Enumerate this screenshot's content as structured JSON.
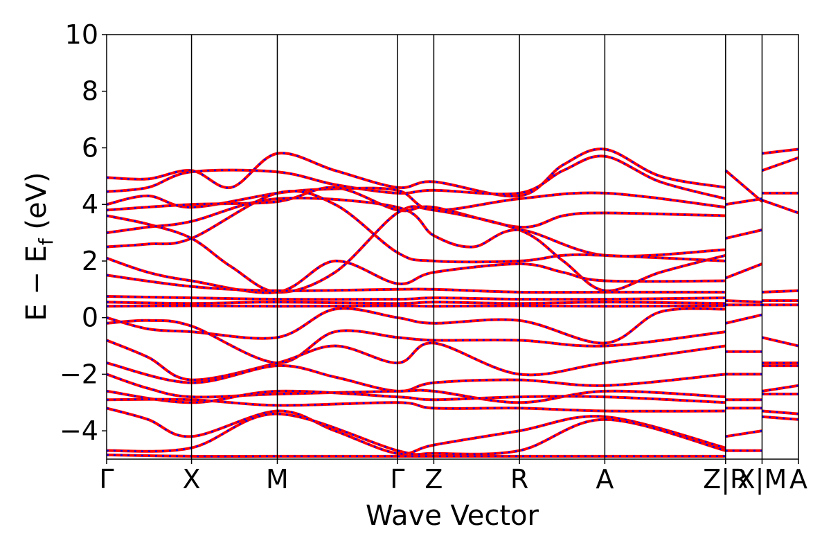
{
  "chart_data": {
    "type": "line",
    "xlabel": "Wave Vector",
    "ylabel_parts": {
      "main": "E − E",
      "sub": "f",
      "unit": " (eV)"
    },
    "ylim": [
      -5,
      10
    ],
    "yticks": [
      10,
      8,
      6,
      4,
      2,
      0,
      -2,
      -4
    ],
    "ytick_labels": [
      "10",
      "8",
      "6",
      "4",
      "2",
      "0",
      "−2",
      "−4"
    ],
    "kpath_segments": [
      "Γ–X",
      "X–M",
      "M–Γ",
      "Γ–Z",
      "Z–R",
      "R–A",
      "A–Z",
      "R–X",
      "M–A"
    ],
    "kpoints": [
      {
        "label": "Γ",
        "x": 0.0
      },
      {
        "label": "X",
        "x": 0.1227
      },
      {
        "label": "M",
        "x": 0.2467
      },
      {
        "label": "Γ",
        "x": 0.4203
      },
      {
        "label": "Z",
        "x": 0.4729
      },
      {
        "label": "R",
        "x": 0.5967
      },
      {
        "label": "A",
        "x": 0.7201
      },
      {
        "label": "Z|R",
        "x": 0.8947
      },
      {
        "label": "X|M",
        "x": 0.9474
      },
      {
        "label": "A",
        "x": 1.0
      }
    ],
    "xlim": [
      0,
      1
    ],
    "series": [
      {
        "color": "#ff0000",
        "style": "solid"
      },
      {
        "color": "#0000ff",
        "style": "dashed"
      }
    ],
    "bands": [
      [
        [
          0,
          4.95
        ],
        [
          0.06,
          4.9
        ],
        [
          0.1227,
          5.2
        ],
        [
          0.18,
          4.6
        ],
        [
          0.2467,
          5.8
        ],
        [
          0.33,
          5.2
        ],
        [
          0.4203,
          4.6
        ],
        [
          0.4729,
          4.8
        ],
        [
          0.5967,
          4.3
        ],
        [
          0.66,
          5.4
        ],
        [
          0.7201,
          5.95
        ],
        [
          0.8,
          5.0
        ],
        [
          0.8947,
          4.6
        ]
      ],
      [
        [
          0,
          4.45
        ],
        [
          0.06,
          4.6
        ],
        [
          0.1227,
          5.15
        ],
        [
          0.2467,
          5.15
        ],
        [
          0.33,
          4.7
        ],
        [
          0.4203,
          4.4
        ],
        [
          0.4729,
          4.5
        ],
        [
          0.5967,
          4.4
        ],
        [
          0.66,
          5.2
        ],
        [
          0.7201,
          5.7
        ],
        [
          0.8,
          4.8
        ],
        [
          0.8947,
          4.2
        ]
      ],
      [
        [
          0,
          4.0
        ],
        [
          0.06,
          4.3
        ],
        [
          0.1227,
          3.9
        ],
        [
          0.2467,
          4.4
        ],
        [
          0.33,
          4.55
        ],
        [
          0.4203,
          4.5
        ],
        [
          0.4729,
          3.8
        ],
        [
          0.5967,
          4.2
        ],
        [
          0.7201,
          4.4
        ],
        [
          0.8947,
          3.9
        ]
      ],
      [
        [
          0,
          3.8
        ],
        [
          0.1227,
          4.0
        ],
        [
          0.2467,
          4.1
        ],
        [
          0.33,
          4.6
        ],
        [
          0.4203,
          3.8
        ],
        [
          0.4729,
          3.9
        ],
        [
          0.5967,
          3.2
        ],
        [
          0.66,
          3.6
        ],
        [
          0.7201,
          3.7
        ],
        [
          0.8947,
          3.6
        ]
      ],
      [
        [
          0,
          3.6
        ],
        [
          0.06,
          3.3
        ],
        [
          0.1227,
          2.8
        ],
        [
          0.18,
          1.8
        ],
        [
          0.2467,
          0.9
        ],
        [
          0.33,
          1.6
        ],
        [
          0.4203,
          3.7
        ],
        [
          0.4729,
          3.8
        ],
        [
          0.5967,
          3.1
        ],
        [
          0.66,
          2.0
        ],
        [
          0.7201,
          0.95
        ],
        [
          0.8,
          1.6
        ],
        [
          0.8947,
          2.2
        ]
      ],
      [
        [
          0,
          3.0
        ],
        [
          0.06,
          3.2
        ],
        [
          0.1227,
          3.4
        ],
        [
          0.2467,
          4.2
        ],
        [
          0.4203,
          3.9
        ],
        [
          0.4729,
          2.9
        ],
        [
          0.53,
          2.5
        ],
        [
          0.5967,
          3.1
        ],
        [
          0.7201,
          2.2
        ],
        [
          0.8947,
          2.4
        ]
      ],
      [
        [
          0,
          2.5
        ],
        [
          0.06,
          2.6
        ],
        [
          0.1227,
          2.8
        ],
        [
          0.2467,
          4.4
        ],
        [
          0.33,
          4.0
        ],
        [
          0.4203,
          2.3
        ],
        [
          0.4729,
          2.0
        ],
        [
          0.5967,
          2.0
        ],
        [
          0.66,
          2.2
        ],
        [
          0.7201,
          2.2
        ],
        [
          0.8947,
          2.0
        ]
      ],
      [
        [
          0,
          2.1
        ],
        [
          0.06,
          1.6
        ],
        [
          0.1227,
          1.3
        ],
        [
          0.2467,
          0.9
        ],
        [
          0.33,
          2.0
        ],
        [
          0.4203,
          1.2
        ],
        [
          0.4729,
          1.6
        ],
        [
          0.5967,
          1.9
        ],
        [
          0.66,
          1.6
        ],
        [
          0.7201,
          1.3
        ],
        [
          0.8947,
          1.3
        ]
      ],
      [
        [
          0,
          1.5
        ],
        [
          0.1227,
          1.1
        ],
        [
          0.2467,
          0.95
        ],
        [
          0.4203,
          1.0
        ],
        [
          0.4729,
          1.0
        ],
        [
          0.5967,
          0.9
        ],
        [
          0.7201,
          0.9
        ],
        [
          0.8947,
          0.9
        ]
      ],
      [
        [
          0,
          0.75
        ],
        [
          0.1227,
          0.7
        ],
        [
          0.2467,
          0.65
        ],
        [
          0.4203,
          0.65
        ],
        [
          0.4729,
          0.7
        ],
        [
          0.5967,
          0.65
        ],
        [
          0.7201,
          0.65
        ],
        [
          0.8947,
          0.7
        ]
      ],
      [
        [
          0,
          0.55
        ],
        [
          0.1227,
          0.5
        ],
        [
          0.2467,
          0.55
        ],
        [
          0.4203,
          0.5
        ],
        [
          0.4729,
          0.55
        ],
        [
          0.5967,
          0.5
        ],
        [
          0.7201,
          0.55
        ],
        [
          0.8947,
          0.5
        ]
      ],
      [
        [
          0,
          0.4
        ],
        [
          0.1227,
          0.42
        ],
        [
          0.2467,
          0.4
        ],
        [
          0.4203,
          0.42
        ],
        [
          0.4729,
          0.4
        ],
        [
          0.5967,
          0.42
        ],
        [
          0.7201,
          0.4
        ],
        [
          0.8947,
          0.42
        ]
      ],
      [
        [
          0,
          0.0
        ],
        [
          0.06,
          -0.4
        ],
        [
          0.1227,
          -0.5
        ],
        [
          0.2467,
          -0.7
        ],
        [
          0.33,
          0.3
        ],
        [
          0.4203,
          0.0
        ],
        [
          0.4729,
          -0.2
        ],
        [
          0.5967,
          -0.1
        ],
        [
          0.7201,
          -0.9
        ],
        [
          0.8,
          0.2
        ],
        [
          0.8947,
          0.3
        ]
      ],
      [
        [
          0,
          -0.2
        ],
        [
          0.06,
          -0.1
        ],
        [
          0.1227,
          -0.3
        ],
        [
          0.2467,
          -1.6
        ],
        [
          0.33,
          -0.5
        ],
        [
          0.4203,
          -0.7
        ],
        [
          0.4729,
          -0.8
        ],
        [
          0.5967,
          -0.8
        ],
        [
          0.7201,
          -1.0
        ],
        [
          0.8947,
          -0.5
        ]
      ],
      [
        [
          0,
          -0.8
        ],
        [
          0.06,
          -1.4
        ],
        [
          0.1227,
          -2.2
        ],
        [
          0.2467,
          -1.6
        ],
        [
          0.33,
          -1.0
        ],
        [
          0.4203,
          -1.6
        ],
        [
          0.4729,
          -0.9
        ],
        [
          0.5967,
          -2.0
        ],
        [
          0.7201,
          -1.6
        ],
        [
          0.8947,
          -1.0
        ]
      ],
      [
        [
          0,
          -1.6
        ],
        [
          0.1227,
          -2.3
        ],
        [
          0.2467,
          -1.7
        ],
        [
          0.33,
          -2.1
        ],
        [
          0.4203,
          -2.6
        ],
        [
          0.4729,
          -2.3
        ],
        [
          0.5967,
          -2.2
        ],
        [
          0.7201,
          -2.4
        ],
        [
          0.8947,
          -2.0
        ]
      ],
      [
        [
          0,
          -2.0
        ],
        [
          0.06,
          -2.5
        ],
        [
          0.1227,
          -2.8
        ],
        [
          0.2467,
          -2.7
        ],
        [
          0.4203,
          -2.6
        ],
        [
          0.4729,
          -2.6
        ],
        [
          0.5967,
          -3.0
        ],
        [
          0.7201,
          -2.6
        ],
        [
          0.8947,
          -2.8
        ]
      ],
      [
        [
          0,
          -2.6
        ],
        [
          0.1227,
          -3.0
        ],
        [
          0.2467,
          -2.6
        ],
        [
          0.4203,
          -2.8
        ],
        [
          0.4729,
          -2.9
        ],
        [
          0.5967,
          -2.8
        ],
        [
          0.7201,
          -2.8
        ],
        [
          0.8947,
          -3.0
        ]
      ],
      [
        [
          0,
          -2.9
        ],
        [
          0.1227,
          -2.9
        ],
        [
          0.2467,
          -3.1
        ],
        [
          0.4203,
          -3.0
        ],
        [
          0.4729,
          -3.2
        ],
        [
          0.5967,
          -3.2
        ],
        [
          0.7201,
          -3.3
        ],
        [
          0.8947,
          -3.3
        ]
      ],
      [
        [
          0,
          -3.2
        ],
        [
          0.06,
          -3.6
        ],
        [
          0.1227,
          -4.2
        ],
        [
          0.2467,
          -3.3
        ],
        [
          0.33,
          -4.0
        ],
        [
          0.4203,
          -4.8
        ],
        [
          0.4729,
          -4.5
        ],
        [
          0.5967,
          -4.0
        ],
        [
          0.7201,
          -3.5
        ],
        [
          0.8947,
          -4.6
        ]
      ],
      [
        [
          0,
          -4.7
        ],
        [
          0.1227,
          -4.6
        ],
        [
          0.2467,
          -3.4
        ],
        [
          0.4203,
          -4.7
        ],
        [
          0.4729,
          -4.8
        ],
        [
          0.5967,
          -4.7
        ],
        [
          0.7201,
          -3.6
        ],
        [
          0.8947,
          -4.7
        ]
      ],
      [
        [
          0,
          -4.85
        ],
        [
          0.1227,
          -4.9
        ],
        [
          0.2467,
          -4.9
        ],
        [
          0.4203,
          -4.9
        ],
        [
          0.4729,
          -4.9
        ],
        [
          0.5967,
          -4.9
        ],
        [
          0.7201,
          -4.9
        ],
        [
          0.8947,
          -4.9
        ]
      ]
    ],
    "bands_rx": [
      [
        [
          0.8947,
          5.2
        ],
        [
          0.9474,
          4.1
        ]
      ],
      [
        [
          0.8947,
          4.0
        ],
        [
          0.9474,
          4.2
        ]
      ],
      [
        [
          0.8947,
          2.8
        ],
        [
          0.9474,
          3.1
        ]
      ],
      [
        [
          0.8947,
          1.4
        ],
        [
          0.9474,
          1.9
        ]
      ],
      [
        [
          0.8947,
          0.6
        ],
        [
          0.9474,
          0.55
        ]
      ],
      [
        [
          0.8947,
          0.45
        ],
        [
          0.9474,
          0.45
        ]
      ],
      [
        [
          0.8947,
          -0.2
        ],
        [
          0.9474,
          0.1
        ]
      ],
      [
        [
          0.8947,
          -1.2
        ],
        [
          0.9474,
          -1.2
        ]
      ],
      [
        [
          0.8947,
          -2.0
        ],
        [
          0.9474,
          -2.0
        ]
      ],
      [
        [
          0.8947,
          -2.9
        ],
        [
          0.9474,
          -2.9
        ]
      ],
      [
        [
          0.8947,
          -3.2
        ],
        [
          0.9474,
          -3.2
        ]
      ],
      [
        [
          0.8947,
          -4.2
        ],
        [
          0.9474,
          -4.0
        ]
      ],
      [
        [
          0.8947,
          -4.7
        ],
        [
          0.9474,
          -4.7
        ]
      ]
    ],
    "bands_ma": [
      [
        [
          0.9474,
          5.8
        ],
        [
          1.0,
          5.95
        ]
      ],
      [
        [
          0.9474,
          5.2
        ],
        [
          1.0,
          5.65
        ]
      ],
      [
        [
          0.9474,
          4.4
        ],
        [
          1.0,
          4.4
        ]
      ],
      [
        [
          0.9474,
          4.15
        ],
        [
          1.0,
          3.7
        ]
      ],
      [
        [
          0.9474,
          0.9
        ],
        [
          1.0,
          0.95
        ]
      ],
      [
        [
          0.9474,
          0.6
        ],
        [
          1.0,
          0.6
        ]
      ],
      [
        [
          0.9474,
          0.45
        ],
        [
          1.0,
          0.45
        ]
      ],
      [
        [
          0.9474,
          -0.7
        ],
        [
          1.0,
          -1.0
        ]
      ],
      [
        [
          0.9474,
          -1.6
        ],
        [
          1.0,
          -1.6
        ]
      ],
      [
        [
          0.9474,
          -1.7
        ],
        [
          1.0,
          -1.7
        ]
      ],
      [
        [
          0.9474,
          -2.6
        ],
        [
          1.0,
          -2.4
        ]
      ],
      [
        [
          0.9474,
          -2.7
        ],
        [
          1.0,
          -2.7
        ]
      ],
      [
        [
          0.9474,
          -3.3
        ],
        [
          1.0,
          -3.4
        ]
      ],
      [
        [
          0.9474,
          -3.5
        ],
        [
          1.0,
          -3.6
        ]
      ]
    ]
  }
}
